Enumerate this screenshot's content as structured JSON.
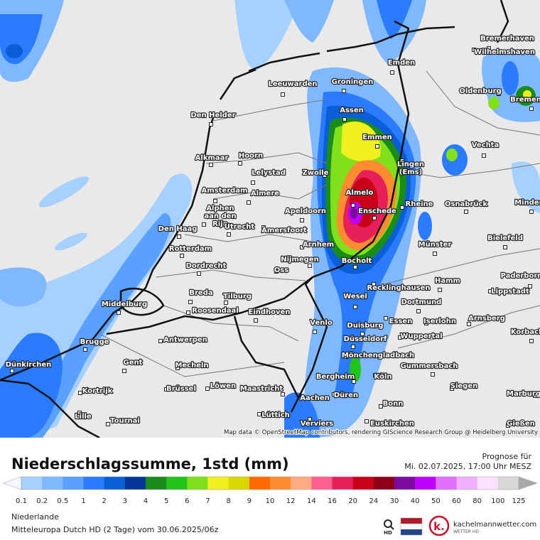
{
  "map": {
    "attribution": "Map data © OpenStreetMap contributors, rendering GIScience Research Group @ Heidelberg University",
    "cities": [
      "Bremerhaven",
      "Wilhelmshaven",
      "Emden",
      "Leeuwarden",
      "Groningen",
      "Oldenburg",
      "Bremen",
      "Den Helder",
      "Assen",
      "Emmen",
      "Vechta",
      "Alkmaar",
      "Hoorn",
      [
        "Lingen",
        "(Ems)"
      ],
      "Lelystad",
      "Zwolle",
      "Amsterdam",
      "Almere",
      "Almelo",
      "Rheine",
      "Osnabrück",
      "Minden",
      "Apeldoorn",
      "Enschede",
      [
        "Alphen",
        "aan den",
        "Rijn"
      ],
      "Den Haag",
      "Utrecht",
      "Amersfoort",
      "Bielefeld",
      "Rotterdam",
      "Arnhem",
      "Münster",
      "Nijmegen",
      "Bocholt",
      "Dordrecht",
      "Oss",
      "Hamm",
      "Paderborn",
      "Recklinghausen",
      "Lippstadt",
      "Breda",
      "Tilburg",
      "Wesel",
      "Middelburg",
      "Dortmund",
      "Roosendaal",
      "Eindhoven",
      "Arnsberg",
      "Essen",
      "Iserlohn",
      "Venlo",
      "Duisburg",
      "Korbach",
      "Wuppertal",
      "Brugge",
      "Antwerpen",
      "Düsseldorf",
      "Mönchengladbach",
      "Gent",
      "Dünkirchen",
      "Mecheln",
      "Gummersbach",
      "Bergheim",
      "Köln",
      "Kortrijk",
      "Brüssel",
      "Löwen",
      "Maastricht",
      "Siegen",
      "Düren",
      "Marburg",
      "Aachen",
      "Bonn",
      "Lille",
      "Lüttich",
      "Tournai",
      "Verviers",
      "Euskirchen",
      "Gießen"
    ]
  },
  "legend": {
    "title": "Niederschlagssumme, 1std (mm)",
    "forecast_label": "Prognose für",
    "forecast_time": "Mi. 02.07.2025, 17:00 Uhr MESZ",
    "values": [
      0.1,
      0.2,
      0.5,
      1,
      2,
      3,
      4,
      5,
      6,
      7,
      8,
      9,
      10,
      12,
      14,
      16,
      20,
      24,
      30,
      40,
      50,
      60,
      80,
      100,
      125
    ],
    "colors": [
      "#a6d0ff",
      "#80b8ff",
      "#5aa0ff",
      "#2b7bff",
      "#0a5fd6",
      "#06359a",
      "#1a8c1a",
      "#22c41a",
      "#80e01a",
      "#f0f020",
      "#d8d800",
      "#ff6a00",
      "#ff8c30",
      "#ffaa80",
      "#ff6090",
      "#e8205a",
      "#c80018",
      "#900018",
      "#7a0aa0",
      "#c000ff",
      "#e070ff",
      "#f0b0ff",
      "#fbe0ff",
      "#d8d8d8"
    ],
    "under_color": "#f4f8ff",
    "over_color": "#a8a8a8"
  },
  "footer": {
    "region": "Niederlande",
    "model": "Mitteleuropa Dutch HD  (2 Tage) vom  30.06.2025/06z",
    "hd": "HD",
    "brand": "kachelmannwetter.com",
    "brand_sub": "WETTER HD"
  }
}
